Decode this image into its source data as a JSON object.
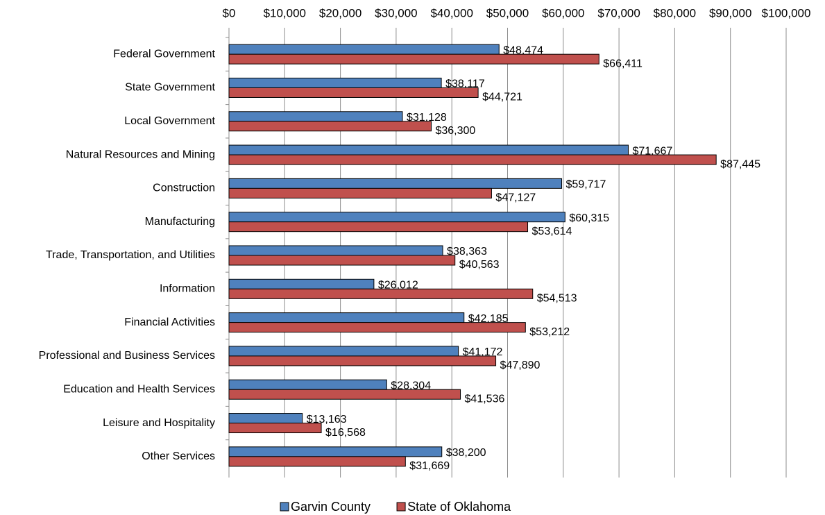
{
  "chart_data": {
    "type": "hbar",
    "categories": [
      "Federal Government",
      "State Government",
      "Local Government",
      "Natural Resources and Mining",
      "Construction",
      "Manufacturing",
      "Trade, Transportation, and Utilities",
      "Information",
      "Financial Activities",
      "Professional and Business Services",
      "Education and Health Services",
      "Leisure and Hospitality",
      "Other Services"
    ],
    "series": [
      {
        "name": "Garvin County",
        "color": "#4f81bd",
        "values": [
          48474,
          38117,
          31128,
          71667,
          59717,
          60315,
          38363,
          26012,
          42185,
          41172,
          28304,
          13163,
          38200
        ],
        "value_labels": [
          "$48,474",
          "$38,117",
          "$31,128",
          "$71,667",
          "$59,717",
          "$60,315",
          "$38,363",
          "$26,012",
          "$42,185",
          "$41,172",
          "$28,304",
          "$13,163",
          "$38,200"
        ]
      },
      {
        "name": "State of Oklahoma",
        "color": "#c0504d",
        "values": [
          66411,
          44721,
          36300,
          87445,
          47127,
          53614,
          40563,
          54513,
          53212,
          47890,
          41536,
          16568,
          31669
        ],
        "value_labels": [
          "$66,411",
          "$44,721",
          "$36,300",
          "$87,445",
          "$47,127",
          "$53,614",
          "$40,563",
          "$54,513",
          "$53,212",
          "$47,890",
          "$41,536",
          "$16,568",
          "$31,669"
        ]
      }
    ],
    "xlim": [
      0,
      100000
    ],
    "xticks": [
      {
        "value": 0,
        "label": "$0"
      },
      {
        "value": 10000,
        "label": "$10,000"
      },
      {
        "value": 20000,
        "label": "$20,000"
      },
      {
        "value": 30000,
        "label": "$30,000"
      },
      {
        "value": 40000,
        "label": "$40,000"
      },
      {
        "value": 50000,
        "label": "$50,000"
      },
      {
        "value": 60000,
        "label": "$60,000"
      },
      {
        "value": 70000,
        "label": "$70,000"
      },
      {
        "value": 80000,
        "label": "$80,000"
      },
      {
        "value": 90000,
        "label": "$90,000"
      },
      {
        "value": 100000,
        "label": "$100,000"
      }
    ],
    "grid": true,
    "legend": "bottom"
  }
}
